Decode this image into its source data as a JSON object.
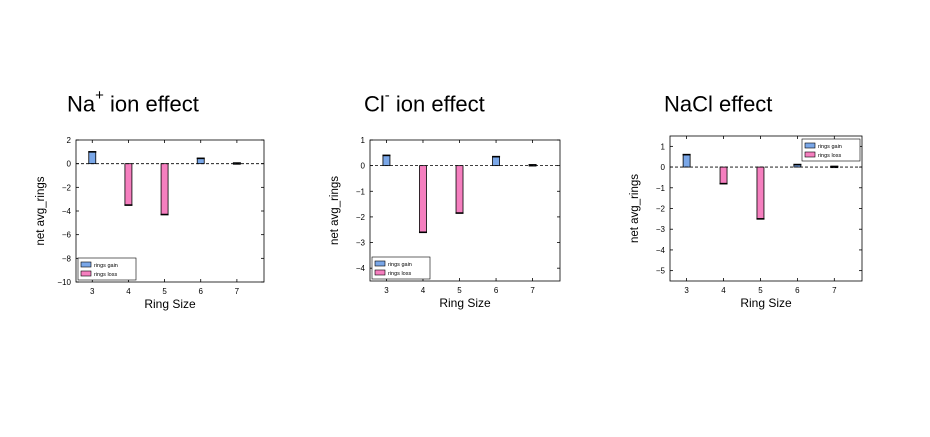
{
  "panels": [
    {
      "title_main": "Na",
      "title_sup": "+",
      "title_rest": " ion effect"
    },
    {
      "title_main": "Cl",
      "title_sup": "-",
      "title_rest": " ion effect"
    },
    {
      "title_main": "NaCl effect",
      "title_sup": "",
      "title_rest": ""
    }
  ],
  "colors": {
    "gain": "#7aa7e8",
    "loss": "#f57fbf",
    "edge": "#000000"
  },
  "chart_data": [
    {
      "type": "bar",
      "title": "Na+ ion effect",
      "xlabel": "Ring Size",
      "ylabel": "net avg_rings",
      "categories": [
        "3",
        "4",
        "5",
        "6",
        "7"
      ],
      "series": [
        {
          "name": "rings gain",
          "values": [
            1.0,
            0,
            0,
            0.45,
            0.05
          ]
        },
        {
          "name": "rings loss",
          "values": [
            0,
            -3.5,
            -4.3,
            0,
            0
          ]
        }
      ],
      "ylim": [
        -10,
        2
      ],
      "yticks": [
        2,
        0,
        -2,
        -4,
        -6,
        -8,
        -10
      ],
      "legend": "lower-left",
      "baseline": "dashed",
      "grid": false
    },
    {
      "type": "bar",
      "title": "Cl- ion effect",
      "xlabel": "Ring Size",
      "ylabel": "net avg_rings",
      "categories": [
        "3",
        "4",
        "5",
        "6",
        "7"
      ],
      "series": [
        {
          "name": "rings gain",
          "values": [
            0.4,
            0,
            0,
            0.35,
            0.03
          ]
        },
        {
          "name": "rings loss",
          "values": [
            0,
            -2.6,
            -1.85,
            0,
            0
          ]
        }
      ],
      "ylim": [
        -4.5,
        1
      ],
      "yticks": [
        1,
        0,
        -1,
        -2,
        -3,
        -4
      ],
      "legend": "lower-left",
      "baseline": "dashed",
      "grid": false
    },
    {
      "type": "bar",
      "title": "NaCl effect",
      "xlabel": "Ring Size",
      "ylabel": "net avg_rings",
      "categories": [
        "3",
        "4",
        "5",
        "6",
        "7"
      ],
      "series": [
        {
          "name": "rings gain",
          "values": [
            0.6,
            0,
            0,
            0.12,
            0.03
          ]
        },
        {
          "name": "rings loss",
          "values": [
            0,
            -0.8,
            -2.5,
            0,
            0
          ]
        }
      ],
      "ylim": [
        -5.5,
        1.5
      ],
      "yticks": [
        1,
        0,
        -1,
        -2,
        -3,
        -4,
        -5
      ],
      "legend": "upper-right",
      "baseline": "dashed",
      "grid": false
    }
  ]
}
